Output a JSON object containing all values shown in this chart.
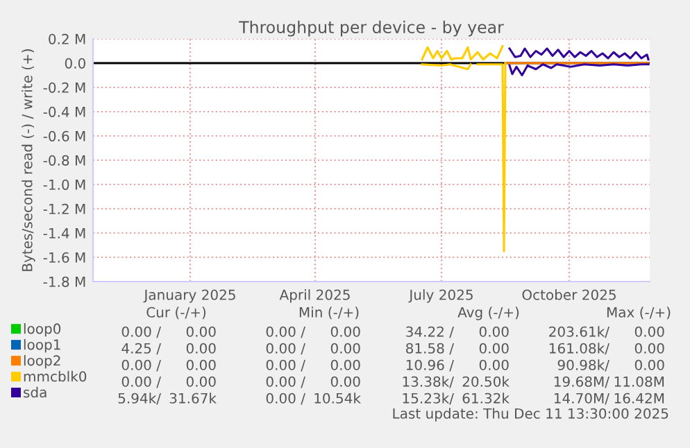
{
  "chart_data": {
    "type": "line",
    "title": "Throughput per device - by year",
    "ylabel": "Bytes/second read (-) / write (+)",
    "xlim": [
      "2024-11-05",
      "2025-12-11"
    ],
    "xticks": [
      {
        "value": "2025-01-14",
        "label": "January 2025"
      },
      {
        "value": "2025-04-14",
        "label": "April 2025"
      },
      {
        "value": "2025-07-14",
        "label": "July 2025"
      },
      {
        "value": "2025-10-14",
        "label": "October 2025"
      }
    ],
    "ylim": [
      -1.8,
      0.2
    ],
    "yticks": [
      {
        "value": 0.2,
        "label": "0.2 M"
      },
      {
        "value": 0.0,
        "label": "0.0"
      },
      {
        "value": -0.2,
        "label": "-0.2 M"
      },
      {
        "value": -0.4,
        "label": "-0.4 M"
      },
      {
        "value": -0.6,
        "label": "-0.6 M"
      },
      {
        "value": -0.8,
        "label": "-0.8 M"
      },
      {
        "value": -1.0,
        "label": "-1.0 M"
      },
      {
        "value": -1.2,
        "label": "-1.2 M"
      },
      {
        "value": -1.4,
        "label": "-1.4 M"
      },
      {
        "value": -1.6,
        "label": "-1.6 M"
      },
      {
        "value": -1.8,
        "label": "-1.8 M"
      }
    ],
    "grid": true,
    "legend": "bottom left",
    "marker": "none",
    "line_style": "solid",
    "ref_lines": [
      {
        "axis": "y",
        "value": 0,
        "color": "#000000"
      }
    ],
    "series": [
      {
        "name": "loop0",
        "color": "#00cc00"
      },
      {
        "name": "loop1",
        "color": "#0066b3"
      },
      {
        "name": "loop2",
        "color": "#ff8000",
        "x": [
          "2025-08-29",
          "2025-12-10"
        ],
        "values": [
          0,
          0
        ]
      },
      {
        "name": "mmcblk0",
        "color": "#ffcc00",
        "x": [
          "2025-06-30",
          "2025-07-04",
          "2025-07-08",
          "2025-07-11",
          "2025-07-14",
          "2025-07-18",
          "2025-07-21",
          "2025-07-24",
          "2025-07-29",
          "2025-08-02",
          "2025-08-04",
          "2025-08-09",
          "2025-08-13",
          "2025-08-18",
          "2025-08-23",
          "2025-08-27"
        ],
        "values": [
          0.03,
          0.13,
          0.04,
          0.1,
          0.04,
          0.1,
          0.03,
          0.04,
          0.04,
          0.13,
          0.03,
          0.09,
          0.03,
          0.08,
          0.04,
          0.14
        ]
      },
      {
        "color": "#ffcc00",
        "x": [
          "2025-06-30",
          "2025-07-14",
          "2025-07-20",
          "2025-08-02",
          "2025-08-04",
          "2025-08-06",
          "2025-08-09",
          "2025-08-27",
          "2025-08-28",
          "2025-08-29"
        ],
        "values": [
          -0.01,
          -0.02,
          -0.01,
          -0.05,
          -0.01,
          null,
          -0.01,
          -0.01,
          -1.55,
          0
        ]
      },
      {
        "name": "sda",
        "color": "#330099",
        "x": [
          "2025-09-01",
          "2025-09-05",
          "2025-09-09",
          "2025-09-12",
          "2025-09-16",
          "2025-09-20",
          "2025-09-24",
          "2025-09-28",
          "2025-10-02",
          "2025-10-06",
          "2025-10-10",
          "2025-10-14",
          "2025-10-18",
          "2025-10-22",
          "2025-10-26",
          "2025-10-30",
          "2025-11-03",
          "2025-11-07",
          "2025-11-11",
          "2025-11-15",
          "2025-11-19",
          "2025-11-23",
          "2025-11-27",
          "2025-12-01",
          "2025-12-05",
          "2025-12-09",
          "2025-12-10"
        ],
        "values": [
          0.12,
          0.05,
          0.06,
          0.12,
          0.05,
          0.1,
          0.07,
          0.12,
          0.06,
          0.11,
          0.05,
          0.1,
          0.05,
          0.09,
          0.06,
          0.1,
          0.05,
          0.08,
          0.04,
          0.09,
          0.05,
          0.08,
          0.04,
          0.09,
          0.04,
          0.07,
          0.03
        ]
      },
      {
        "color": "#330099",
        "x": [
          "2025-09-01",
          "2025-09-03",
          "2025-09-06",
          "2025-09-10",
          "2025-09-14",
          "2025-09-20",
          "2025-09-25",
          "2025-10-01",
          "2025-10-05",
          "2025-10-15",
          "2025-10-25",
          "2025-11-05",
          "2025-11-15",
          "2025-11-25",
          "2025-12-05",
          "2025-12-10"
        ],
        "values": [
          -0.02,
          -0.09,
          -0.03,
          -0.1,
          -0.02,
          -0.05,
          -0.01,
          -0.04,
          -0.01,
          -0.03,
          -0.01,
          -0.02,
          -0.01,
          -0.02,
          -0.01,
          -0.01
        ]
      }
    ],
    "annotations": [
      "Cur (-/+)",
      "Min (-/+)",
      "Avg (-/+)",
      "Max (-/+)",
      "0.00 /",
      "0.00",
      "0.00 /",
      "0.00",
      "34.22 /",
      "0.00",
      "203.61k/",
      "0.00",
      "4.25 /",
      "0.00",
      "0.00 /",
      "0.00",
      "81.58 /",
      "0.00",
      "161.08k/",
      "0.00",
      "0.00 /",
      "0.00",
      "0.00 /",
      "0.00",
      "10.96 /",
      "0.00",
      "90.98k/",
      "0.00",
      "0.00 /",
      "0.00",
      "0.00 /",
      "0.00",
      "13.38k/",
      "20.50k",
      "19.68M/",
      "11.08M",
      "5.94k/",
      "31.67k",
      "0.00 /",
      "10.54k",
      "15.23k/",
      "61.32k",
      "14.70M/",
      "16.42M",
      "Last update: Thu Dec 11 13:30:00 2025"
    ]
  }
}
